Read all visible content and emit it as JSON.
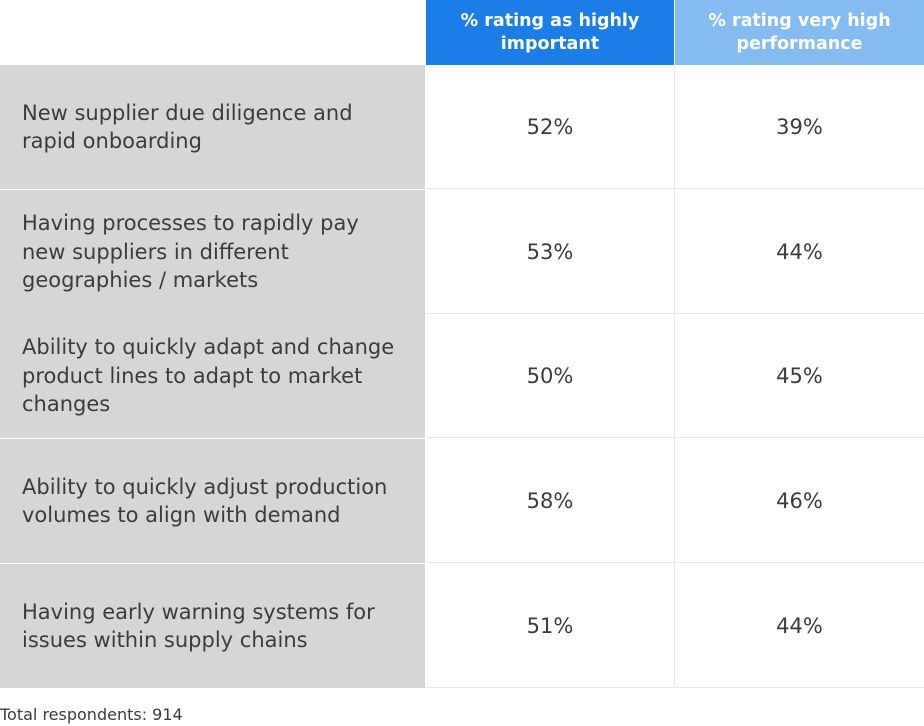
{
  "chart_data": {
    "type": "table",
    "columns": [
      "% rating as highly important",
      "% rating very high performance"
    ],
    "rows": [
      {
        "label": "New supplier due diligence and rapid onboarding",
        "values": [
          "52%",
          "39%"
        ]
      },
      {
        "label": "Having processes to rapidly pay new suppliers in different geographies / markets",
        "values": [
          "53%",
          "44%"
        ]
      },
      {
        "label": "Ability to quickly adapt and change product lines to adapt to market changes",
        "values": [
          "50%",
          "45%"
        ]
      },
      {
        "label": "Ability to quickly adjust production volumes to align with demand",
        "values": [
          "58%",
          "46%"
        ]
      },
      {
        "label": "Having early warning systems for issues within supply chains",
        "values": [
          "51%",
          "44%"
        ]
      }
    ],
    "footnote": "Total respondents: 914"
  },
  "colors": {
    "header_primary": "#1b7ee8",
    "header_secondary": "#84bcf2",
    "label_background": "#d5d6d8"
  }
}
